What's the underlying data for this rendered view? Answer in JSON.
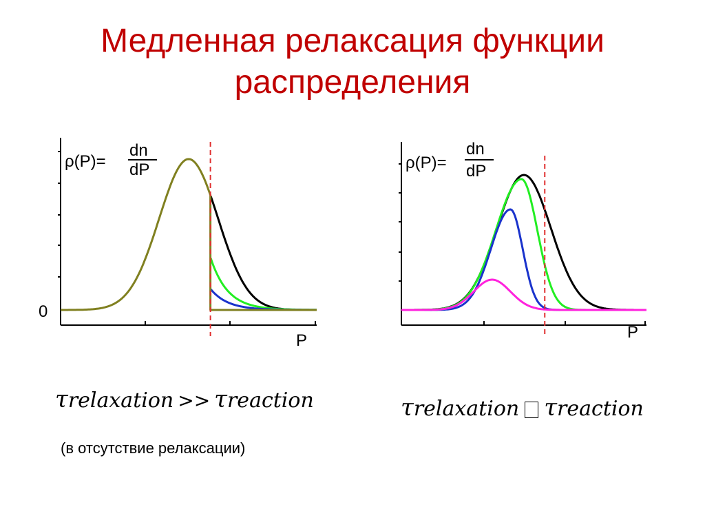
{
  "title": {
    "line1": "Медленная релаксация функции",
    "line2": "распределения"
  },
  "chart_data": [
    {
      "type": "line",
      "ylabel": "ρ(P)=dn/dP",
      "ylabel_parts": {
        "lhs": "ρ(P)=",
        "num": "dn",
        "den": "dP"
      },
      "xlabel": "P",
      "y_zero_label": "0",
      "xlim": [
        0,
        10
      ],
      "ylim": [
        0,
        1.05
      ],
      "threshold_x": 5.85,
      "threshold_color": "#e03030",
      "series": [
        {
          "color": "#000000",
          "mu": 5.0,
          "amp": 1.0,
          "sigma": 1.15,
          "kind": "gauss_tail",
          "tail_start": 5.85
        },
        {
          "color": "#22ee22",
          "kind": "exp_tail",
          "start_value": 0.35,
          "rate": 1.5,
          "tail_start": 5.85
        },
        {
          "color": "#1a33cc",
          "kind": "exp_tail",
          "start_value": 0.14,
          "rate": 1.5,
          "tail_start": 5.85
        },
        {
          "color": "#808020",
          "kind": "gauss_cut",
          "mu": 5.0,
          "amp": 1.0,
          "sigma": 1.15,
          "cut": 5.85
        }
      ]
    },
    {
      "type": "line",
      "ylabel": "ρ(P)=dn/dP",
      "ylabel_parts": {
        "lhs": "ρ(P)=",
        "num": "dn",
        "den": "dP"
      },
      "xlabel": "P",
      "xlim": [
        0,
        10
      ],
      "ylim": [
        0,
        1.05
      ],
      "threshold_x": 5.85,
      "threshold_color": "#e03030",
      "series": [
        {
          "color": "#000000",
          "kind": "gauss",
          "mu": 5.0,
          "amp": 0.98,
          "sigma": 1.1
        },
        {
          "color": "#22ee22",
          "kind": "gauss_skew",
          "mu": 4.9,
          "amp": 0.95,
          "sigma_l": 1.05,
          "sigma_r": 0.65
        },
        {
          "color": "#1a33cc",
          "kind": "gauss_skew",
          "mu": 4.45,
          "amp": 0.73,
          "sigma_l": 0.8,
          "sigma_r": 0.5
        },
        {
          "color": "#ff22dd",
          "kind": "gauss",
          "mu": 3.7,
          "amp": 0.22,
          "sigma": 0.75
        }
      ]
    }
  ],
  "formulas": {
    "left": {
      "tau1": "τ",
      "sub1": "relaxation",
      "op": ">>",
      "tau2": "τ",
      "sub2": "reaction"
    },
    "right": {
      "tau1": "τ",
      "sub1": "relaxation",
      "op": "",
      "tau2": "τ",
      "sub2": "reaction"
    }
  },
  "note_left": "(в отсутствие релаксации)"
}
